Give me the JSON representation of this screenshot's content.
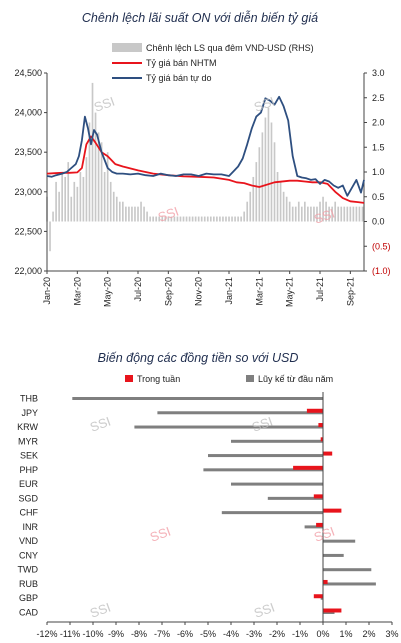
{
  "chart_data": [
    {
      "type": "line",
      "title": "Chênh lệch lãi suất ON với diễn biến tỷ giá",
      "legend": [
        "Chênh lệch LS qua đêm VND-USD (RHS)",
        "Tỷ giá bán NHTM",
        "Tỷ giá bán tự do"
      ],
      "legend_placement": "top-right",
      "x_tick_labels": [
        "Jan-20",
        "Mar-20",
        "May-20",
        "Jul-20",
        "Sep-20",
        "Nov-20",
        "Jan-21",
        "Mar-21",
        "May-21",
        "Jul-21",
        "Sep-21"
      ],
      "ylim": [
        22000,
        24500
      ],
      "y_ticks": [
        "24,500",
        "24,000",
        "23,500",
        "23,000",
        "22,500",
        "22,000"
      ],
      "y2lim": [
        -1.0,
        3.0
      ],
      "y2_ticks": [
        "3.0",
        "2.5",
        "2.0",
        "1.5",
        "1.0",
        "0.5",
        "0.0",
        "(0.5)",
        "(1.0)"
      ],
      "x_start": "Jan-20",
      "x_end": "Oct-21",
      "series": [
        {
          "name": "Chênh lệch LS qua đêm VND-USD (RHS)",
          "axis": "right",
          "kind": "bar",
          "color": "#c8c8c8",
          "x": [
            0,
            0.2,
            0.4,
            0.6,
            0.8,
            1,
            1.2,
            1.4,
            1.6,
            1.8,
            2,
            2.2,
            2.4,
            2.6,
            2.8,
            3,
            3.2,
            3.4,
            3.6,
            3.8,
            4,
            4.2,
            4.4,
            4.6,
            4.8,
            5,
            5.2,
            5.4,
            5.6,
            5.8,
            6,
            6.2,
            6.4,
            6.6,
            6.8,
            7,
            7.2,
            7.4,
            7.6,
            7.8,
            8,
            8.2,
            8.4,
            8.6,
            8.8,
            9,
            9.2,
            9.4,
            9.6,
            9.8,
            10,
            10.2,
            10.4,
            10.6,
            10.8,
            11,
            11.2,
            11.4,
            11.6,
            11.8,
            12,
            12.2,
            12.4,
            12.6,
            12.8,
            13,
            13.2,
            13.4,
            13.6,
            13.8,
            14,
            14.2,
            14.4,
            14.6,
            14.8,
            15,
            15.2,
            15.4,
            15.6,
            15.8,
            16,
            16.2,
            16.4,
            16.6,
            16.8,
            17,
            17.2,
            17.4,
            17.6,
            17.8,
            18,
            18.2,
            18.4,
            18.6,
            18.8,
            19,
            19.2,
            19.4,
            19.6,
            19.8,
            20,
            20.2,
            20.4,
            20.6,
            20.8
          ],
          "values": [
            0.5,
            -0.6,
            0.2,
            0.8,
            0.6,
            1.0,
            0.9,
            1.2,
            0.5,
            0.8,
            0.7,
            1.0,
            0.9,
            1.3,
            2.0,
            2.8,
            2.2,
            1.8,
            1.6,
            1.0,
            1.4,
            0.8,
            0.6,
            0.5,
            0.4,
            0.4,
            0.3,
            0.3,
            0.3,
            0.3,
            0.3,
            0.4,
            0.3,
            0.2,
            0.1,
            0.1,
            0.1,
            0.1,
            0.1,
            0.1,
            0.1,
            0.1,
            0.1,
            0.1,
            0.1,
            0.1,
            0.1,
            0.1,
            0.1,
            0.1,
            0.1,
            0.1,
            0.1,
            0.1,
            0.1,
            0.1,
            0.1,
            0.1,
            0.1,
            0.1,
            0.1,
            0.1,
            0.1,
            0.1,
            0.1,
            0.2,
            0.4,
            0.6,
            0.9,
            1.2,
            1.5,
            1.8,
            2.1,
            2.3,
            2.0,
            1.6,
            1.0,
            0.8,
            0.6,
            0.5,
            0.4,
            0.3,
            0.3,
            0.4,
            0.3,
            0.4,
            0.3,
            0.3,
            0.3,
            0.3,
            0.4,
            0.5,
            0.4,
            0.3,
            0.3,
            0.4,
            0.3,
            0.3,
            0.3,
            0.3,
            0.3,
            0.3,
            0.3,
            0.3,
            0.3
          ]
        },
        {
          "name": "Tỷ giá bán NHTM",
          "axis": "left",
          "kind": "line",
          "color": "#e8141c",
          "x": [
            0,
            0.5,
            1,
            1.5,
            2,
            2.3,
            2.6,
            2.9,
            3.2,
            3.6,
            4,
            4.5,
            5,
            6,
            7,
            8,
            9,
            10,
            11,
            12,
            12.5,
            13,
            13.5,
            14,
            15,
            16,
            16.5,
            17,
            17.5,
            18,
            18.5,
            19,
            19.5,
            20,
            20.5,
            20.9
          ],
          "values": [
            23230,
            23235,
            23240,
            23240,
            23245,
            23300,
            23600,
            23700,
            23620,
            23500,
            23450,
            23350,
            23320,
            23270,
            23230,
            23210,
            23195,
            23190,
            23180,
            23150,
            23120,
            23110,
            23080,
            23060,
            23120,
            23140,
            23140,
            23130,
            23120,
            23120,
            23100,
            23000,
            22920,
            22880,
            22870,
            22860
          ]
        },
        {
          "name": "Tỷ giá bán tự do",
          "axis": "left",
          "kind": "line",
          "color": "#2e4f80",
          "x": [
            0,
            0.3,
            0.6,
            1,
            1.3,
            1.6,
            1.9,
            2.1,
            2.3,
            2.5,
            2.7,
            2.9,
            3.1,
            3.3,
            3.6,
            4,
            4.3,
            4.6,
            5,
            5.5,
            6,
            6.5,
            7,
            7.5,
            8,
            8.5,
            9,
            9.5,
            10,
            10.5,
            11,
            11.5,
            12,
            12.3,
            12.6,
            12.9,
            13.2,
            13.5,
            13.8,
            14.1,
            14.4,
            14.7,
            15,
            15.3,
            15.6,
            15.9,
            16.2,
            16.5,
            16.8,
            17.1,
            17.4,
            17.7,
            18,
            18.3,
            18.6,
            18.9,
            19.2,
            19.5,
            19.8,
            20.1,
            20.4,
            20.7,
            20.9
          ],
          "values": [
            23200,
            23190,
            23210,
            23230,
            23250,
            23300,
            23350,
            23450,
            23650,
            23950,
            23800,
            23600,
            23780,
            23720,
            23500,
            23300,
            23250,
            23230,
            23230,
            23220,
            23230,
            23210,
            23200,
            23230,
            23210,
            23200,
            23220,
            23220,
            23200,
            23230,
            23220,
            23220,
            23200,
            23260,
            23320,
            23420,
            23600,
            23800,
            23950,
            24000,
            24180,
            24150,
            24100,
            24200,
            24080,
            23900,
            23450,
            23200,
            23180,
            23170,
            23150,
            23160,
            23100,
            23150,
            23130,
            23080,
            23050,
            23080,
            22950,
            23050,
            23150,
            22990,
            23150
          ]
        }
      ]
    },
    {
      "type": "bar",
      "orientation": "horizontal",
      "title": "Biến động các đồng tiền so với USD",
      "legend_placement": "top",
      "categories": [
        "THB",
        "JPY",
        "KRW",
        "MYR",
        "SEK",
        "PHP",
        "EUR",
        "SGD",
        "CHF",
        "INR",
        "VND",
        "CNY",
        "TWD",
        "RUB",
        "GBP",
        "CAD"
      ],
      "xlim": [
        -12,
        3
      ],
      "x_ticks": [
        "-12%",
        "-11%",
        "-10%",
        "-9%",
        "-8%",
        "-7%",
        "-6%",
        "-5%",
        "-4%",
        "-3%",
        "-2%",
        "-1%",
        "0%",
        "1%",
        "2%",
        "3%"
      ],
      "series": [
        {
          "name": "Trong tuần",
          "color": "#e8141c",
          "values": [
            0.0,
            -0.7,
            -0.2,
            -0.1,
            0.4,
            -1.3,
            0.0,
            -0.4,
            0.8,
            -0.3,
            0.0,
            0.0,
            0.0,
            0.2,
            -0.4,
            0.8
          ]
        },
        {
          "name": "Lũy kế từ đầu năm",
          "color": "#7f7f7f",
          "values": [
            -10.9,
            -7.2,
            -8.2,
            -4.0,
            -5.0,
            -5.2,
            -4.0,
            -2.4,
            -4.4,
            -0.8,
            1.4,
            0.9,
            2.1,
            2.3,
            -0.1,
            0.5
          ]
        }
      ]
    }
  ],
  "watermark": "SSI"
}
